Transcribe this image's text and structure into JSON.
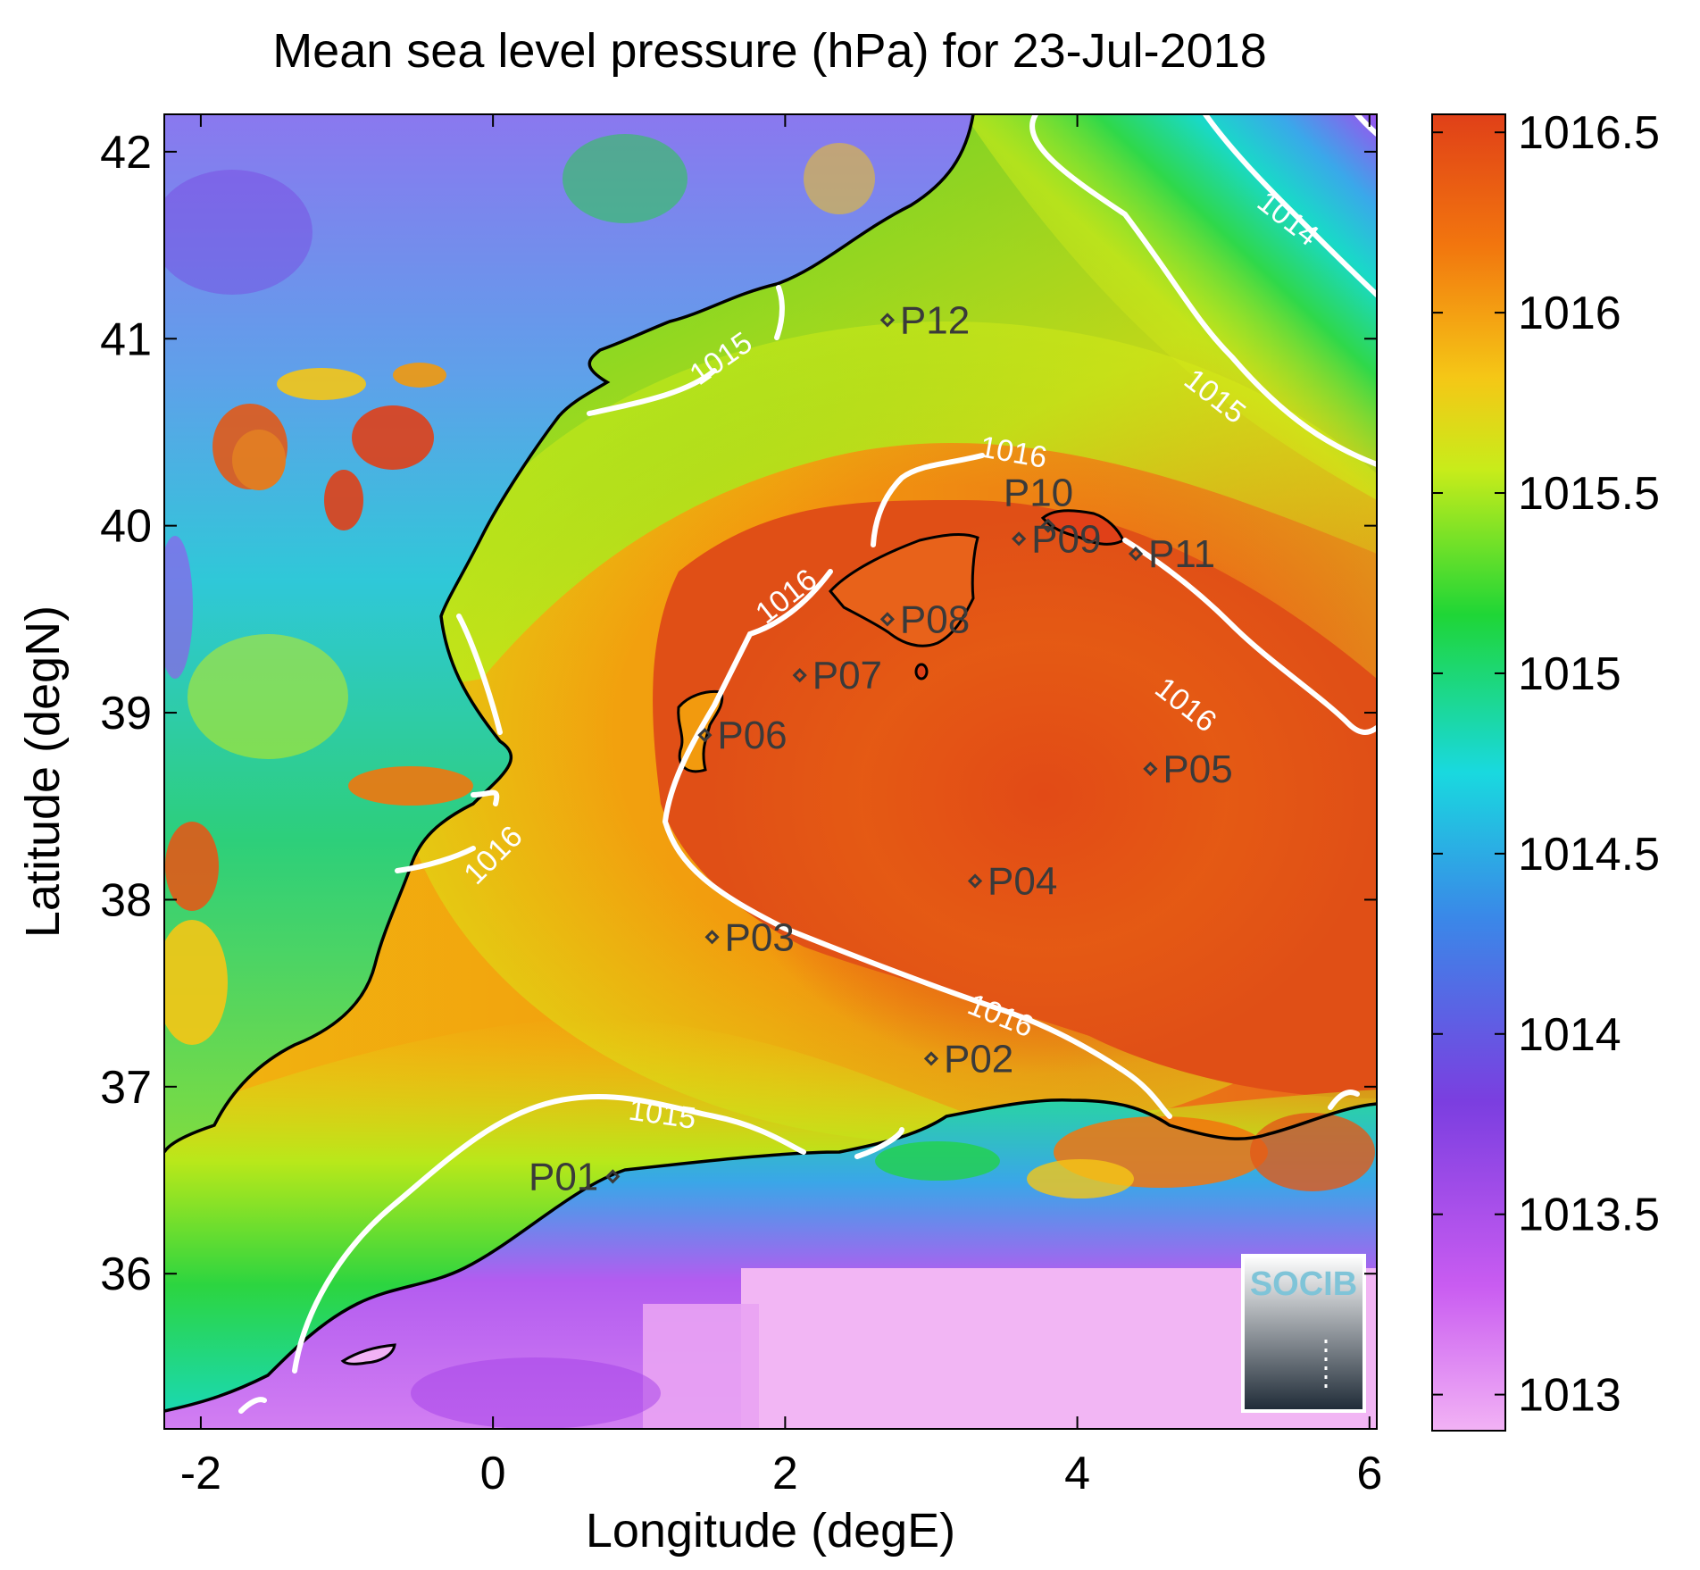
{
  "chart_data": {
    "type": "heatmap",
    "title": "Mean sea level pressure (hPa) for 23-Jul-2018",
    "xlabel": "Longitude (degE)",
    "ylabel": "Latitude (degN)",
    "xlim": [
      -2.25,
      6.05
    ],
    "ylim": [
      35.17,
      42.2
    ],
    "xticks": [
      "-2",
      "0",
      "2",
      "4",
      "6"
    ],
    "xtick_values": [
      -2,
      0,
      2,
      4,
      6
    ],
    "yticks": [
      "36",
      "37",
      "38",
      "39",
      "40",
      "41",
      "42"
    ],
    "ytick_values": [
      36,
      37,
      38,
      39,
      40,
      41,
      42
    ],
    "colorbar": {
      "min": 1012.9,
      "max": 1016.55,
      "ticks": [
        "1013",
        "1013.5",
        "1014",
        "1014.5",
        "1015",
        "1015.5",
        "1016",
        "1016.5"
      ],
      "tick_values": [
        1013,
        1013.5,
        1014,
        1014.5,
        1015,
        1015.5,
        1016,
        1016.5
      ],
      "colormap": [
        "#f2b2f5",
        "#c95cf1",
        "#7b3ee0",
        "#3a88e8",
        "#19d9df",
        "#1fd636",
        "#c8ec1a",
        "#f5c716",
        "#f2760e",
        "#e04018"
      ]
    },
    "points": [
      {
        "label": "P01",
        "lon": 0.82,
        "lat": 36.52
      },
      {
        "label": "P02",
        "lon": 3.0,
        "lat": 37.15
      },
      {
        "label": "P03",
        "lon": 1.5,
        "lat": 37.8
      },
      {
        "label": "P04",
        "lon": 3.3,
        "lat": 38.1
      },
      {
        "label": "P05",
        "lon": 4.5,
        "lat": 38.7
      },
      {
        "label": "P06",
        "lon": 1.45,
        "lat": 38.88
      },
      {
        "label": "P07",
        "lon": 2.1,
        "lat": 39.2
      },
      {
        "label": "P08",
        "lon": 2.7,
        "lat": 39.5
      },
      {
        "label": "P09",
        "lon": 3.6,
        "lat": 39.93
      },
      {
        "label": "P10",
        "lon": 3.8,
        "lat": 40.0
      },
      {
        "label": "P11",
        "lon": 4.4,
        "lat": 39.85
      },
      {
        "label": "P12",
        "lon": 2.7,
        "lat": 41.1
      }
    ],
    "contour_labels": [
      {
        "text": "1015",
        "lon": 1.6,
        "lat": 40.85,
        "angle": -35
      },
      {
        "text": "1016",
        "lon": 0.05,
        "lat": 38.2,
        "angle": -45
      },
      {
        "text": "1016",
        "lon": 2.05,
        "lat": 39.58,
        "angle": -38
      },
      {
        "text": "1016",
        "lon": 3.55,
        "lat": 40.34,
        "angle": 10
      },
      {
        "text": "1016",
        "lon": 4.7,
        "lat": 39.0,
        "angle": 38
      },
      {
        "text": "1016",
        "lon": 3.45,
        "lat": 37.33,
        "angle": 22
      },
      {
        "text": "1015",
        "lon": 1.15,
        "lat": 36.8,
        "angle": 8
      },
      {
        "text": "1015",
        "lon": 4.9,
        "lat": 40.65,
        "angle": 38
      },
      {
        "text": "1014",
        "lon": 5.4,
        "lat": 41.6,
        "angle": 38
      }
    ]
  },
  "logo": {
    "text": "SOCIB"
  }
}
